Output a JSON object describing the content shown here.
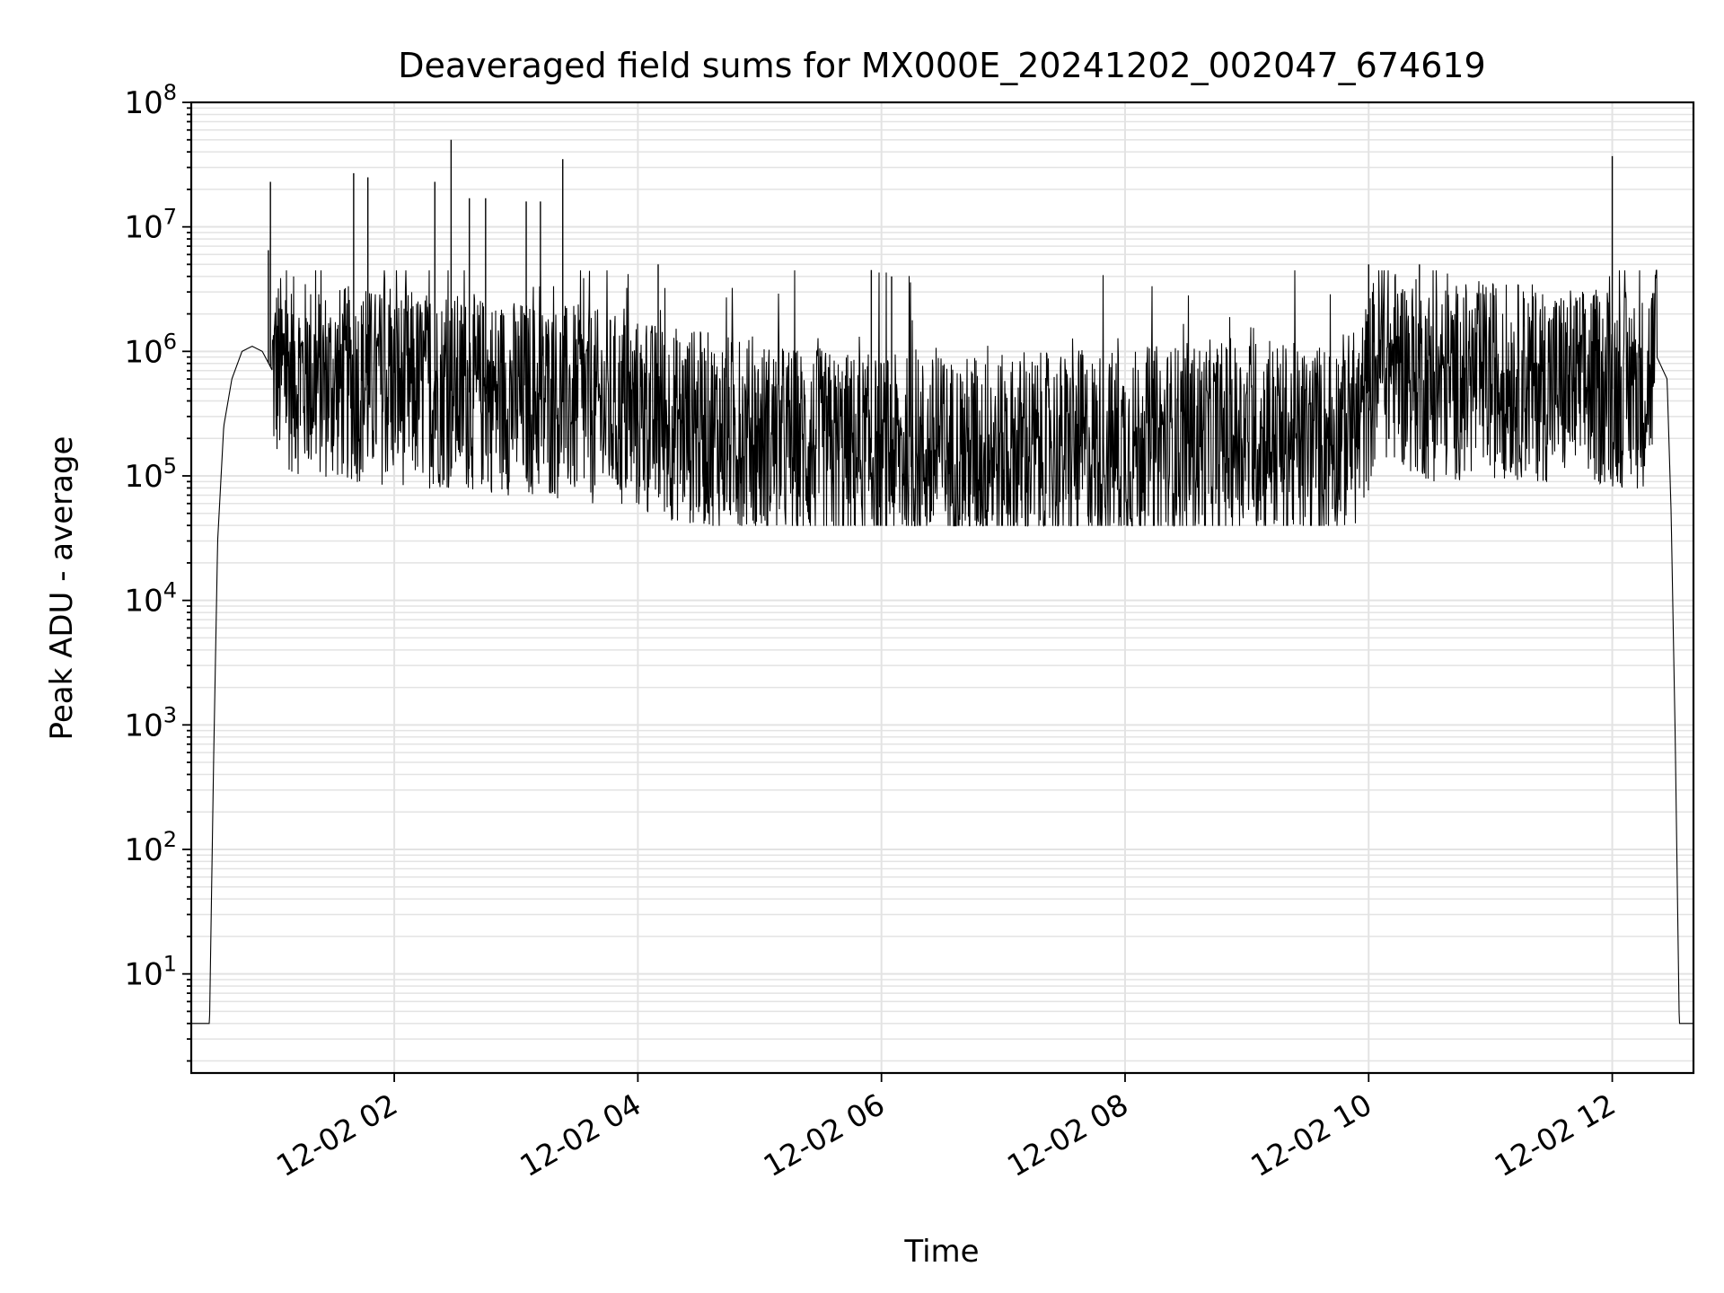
{
  "chart_data": {
    "type": "line",
    "title": "Deaveraged field sums for MX000E_20241202_002047_674619",
    "xlabel": "Time",
    "ylabel": "Peak ADU - average",
    "yscale": "log",
    "grid": true,
    "legend": "none",
    "xlim": [
      "2024-12-02T00:20",
      "2024-12-02T12:40"
    ],
    "ylim": [
      1.6,
      100000000
    ],
    "x_ticks": [
      {
        "value": "2024-12-02T02:00",
        "label": "12-02 02"
      },
      {
        "value": "2024-12-02T04:00",
        "label": "12-02 04"
      },
      {
        "value": "2024-12-02T06:00",
        "label": "12-02 06"
      },
      {
        "value": "2024-12-02T08:00",
        "label": "12-02 08"
      },
      {
        "value": "2024-12-02T10:00",
        "label": "12-02 10"
      },
      {
        "value": "2024-12-02T12:00",
        "label": "12-02 12"
      }
    ],
    "y_ticks": [
      {
        "value": 10,
        "base": "10",
        "exp": "1"
      },
      {
        "value": 100,
        "base": "10",
        "exp": "2"
      },
      {
        "value": 1000,
        "base": "10",
        "exp": "3"
      },
      {
        "value": 10000,
        "base": "10",
        "exp": "4"
      },
      {
        "value": 100000,
        "base": "10",
        "exp": "5"
      },
      {
        "value": 1000000,
        "base": "10",
        "exp": "6"
      },
      {
        "value": 10000000,
        "base": "10",
        "exp": "7"
      },
      {
        "value": 100000000,
        "base": "10",
        "exp": "8"
      }
    ],
    "series": [
      {
        "color": "#000000",
        "baseline": [
          [
            "2024-12-02T00:20",
            4
          ],
          [
            "2024-12-02T00:29",
            4
          ],
          [
            "2024-12-02T00:31",
            500
          ],
          [
            "2024-12-02T00:33",
            30000
          ],
          [
            "2024-12-02T00:36",
            250000
          ],
          [
            "2024-12-02T00:40",
            600000
          ],
          [
            "2024-12-02T00:45",
            1000000
          ],
          [
            "2024-12-02T00:50",
            1100000
          ],
          [
            "2024-12-02T00:55",
            1000000
          ],
          [
            "2024-12-02T01:00",
            700000
          ],
          [
            "2024-12-02T01:30",
            550000
          ],
          [
            "2024-12-02T02:00",
            520000
          ],
          [
            "2024-12-02T02:30",
            480000
          ],
          [
            "2024-12-02T03:00",
            430000
          ],
          [
            "2024-12-02T03:30",
            380000
          ],
          [
            "2024-12-02T04:00",
            300000
          ],
          [
            "2024-12-02T04:30",
            240000
          ],
          [
            "2024-12-02T05:00",
            200000
          ],
          [
            "2024-12-02T05:30",
            170000
          ],
          [
            "2024-12-02T06:00",
            150000
          ],
          [
            "2024-12-02T06:30",
            150000
          ],
          [
            "2024-12-02T07:00",
            150000
          ],
          [
            "2024-12-02T07:30",
            160000
          ],
          [
            "2024-12-02T08:00",
            170000
          ],
          [
            "2024-12-02T08:30",
            190000
          ],
          [
            "2024-12-02T09:00",
            210000
          ],
          [
            "2024-12-02T09:30",
            180000
          ],
          [
            "2024-12-02T09:55",
            250000
          ],
          [
            "2024-12-02T10:05",
            900000
          ],
          [
            "2024-12-02T10:30",
            550000
          ],
          [
            "2024-12-02T11:00",
            600000
          ],
          [
            "2024-12-02T11:30",
            550000
          ],
          [
            "2024-12-02T12:00",
            500000
          ],
          [
            "2024-12-02T12:15",
            480000
          ],
          [
            "2024-12-02T12:22",
            900000
          ],
          [
            "2024-12-02T12:27",
            600000
          ],
          [
            "2024-12-02T12:29",
            50000
          ],
          [
            "2024-12-02T12:31",
            800
          ],
          [
            "2024-12-02T12:33",
            4
          ],
          [
            "2024-12-02T12:40",
            4
          ]
        ],
        "spikes": [
          [
            "2024-12-02T00:58",
            6500000
          ],
          [
            "2024-12-02T00:59",
            23000000
          ],
          [
            "2024-12-02T01:40",
            27000000
          ],
          [
            "2024-12-02T01:47",
            25000000
          ],
          [
            "2024-12-02T02:20",
            23000000
          ],
          [
            "2024-12-02T02:28",
            50000000
          ],
          [
            "2024-12-02T02:37",
            17000000
          ],
          [
            "2024-12-02T02:45",
            17000000
          ],
          [
            "2024-12-02T03:05",
            16000000
          ],
          [
            "2024-12-02T03:12",
            16000000
          ],
          [
            "2024-12-02T03:23",
            35000000
          ],
          [
            "2024-12-02T04:10",
            5000000
          ],
          [
            "2024-12-02T05:55",
            4500000
          ],
          [
            "2024-12-02T06:05",
            4000000
          ],
          [
            "2024-12-02T10:00",
            5000000
          ],
          [
            "2024-12-02T10:25",
            5000000
          ],
          [
            "2024-12-02T12:00",
            37000000
          ]
        ],
        "noise_band": {
          "low": 50000,
          "high": 2000000
        }
      }
    ]
  }
}
